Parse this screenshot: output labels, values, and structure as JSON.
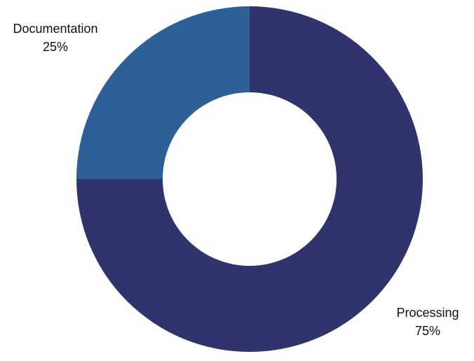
{
  "chart_data": {
    "type": "pie",
    "donut": true,
    "categories": [
      "Documentation",
      "Processing"
    ],
    "values": [
      25,
      75
    ],
    "value_labels": [
      "25%",
      "75%"
    ],
    "colors": [
      "#2E5F97",
      "#30346C"
    ],
    "legend": "none",
    "title": ""
  }
}
